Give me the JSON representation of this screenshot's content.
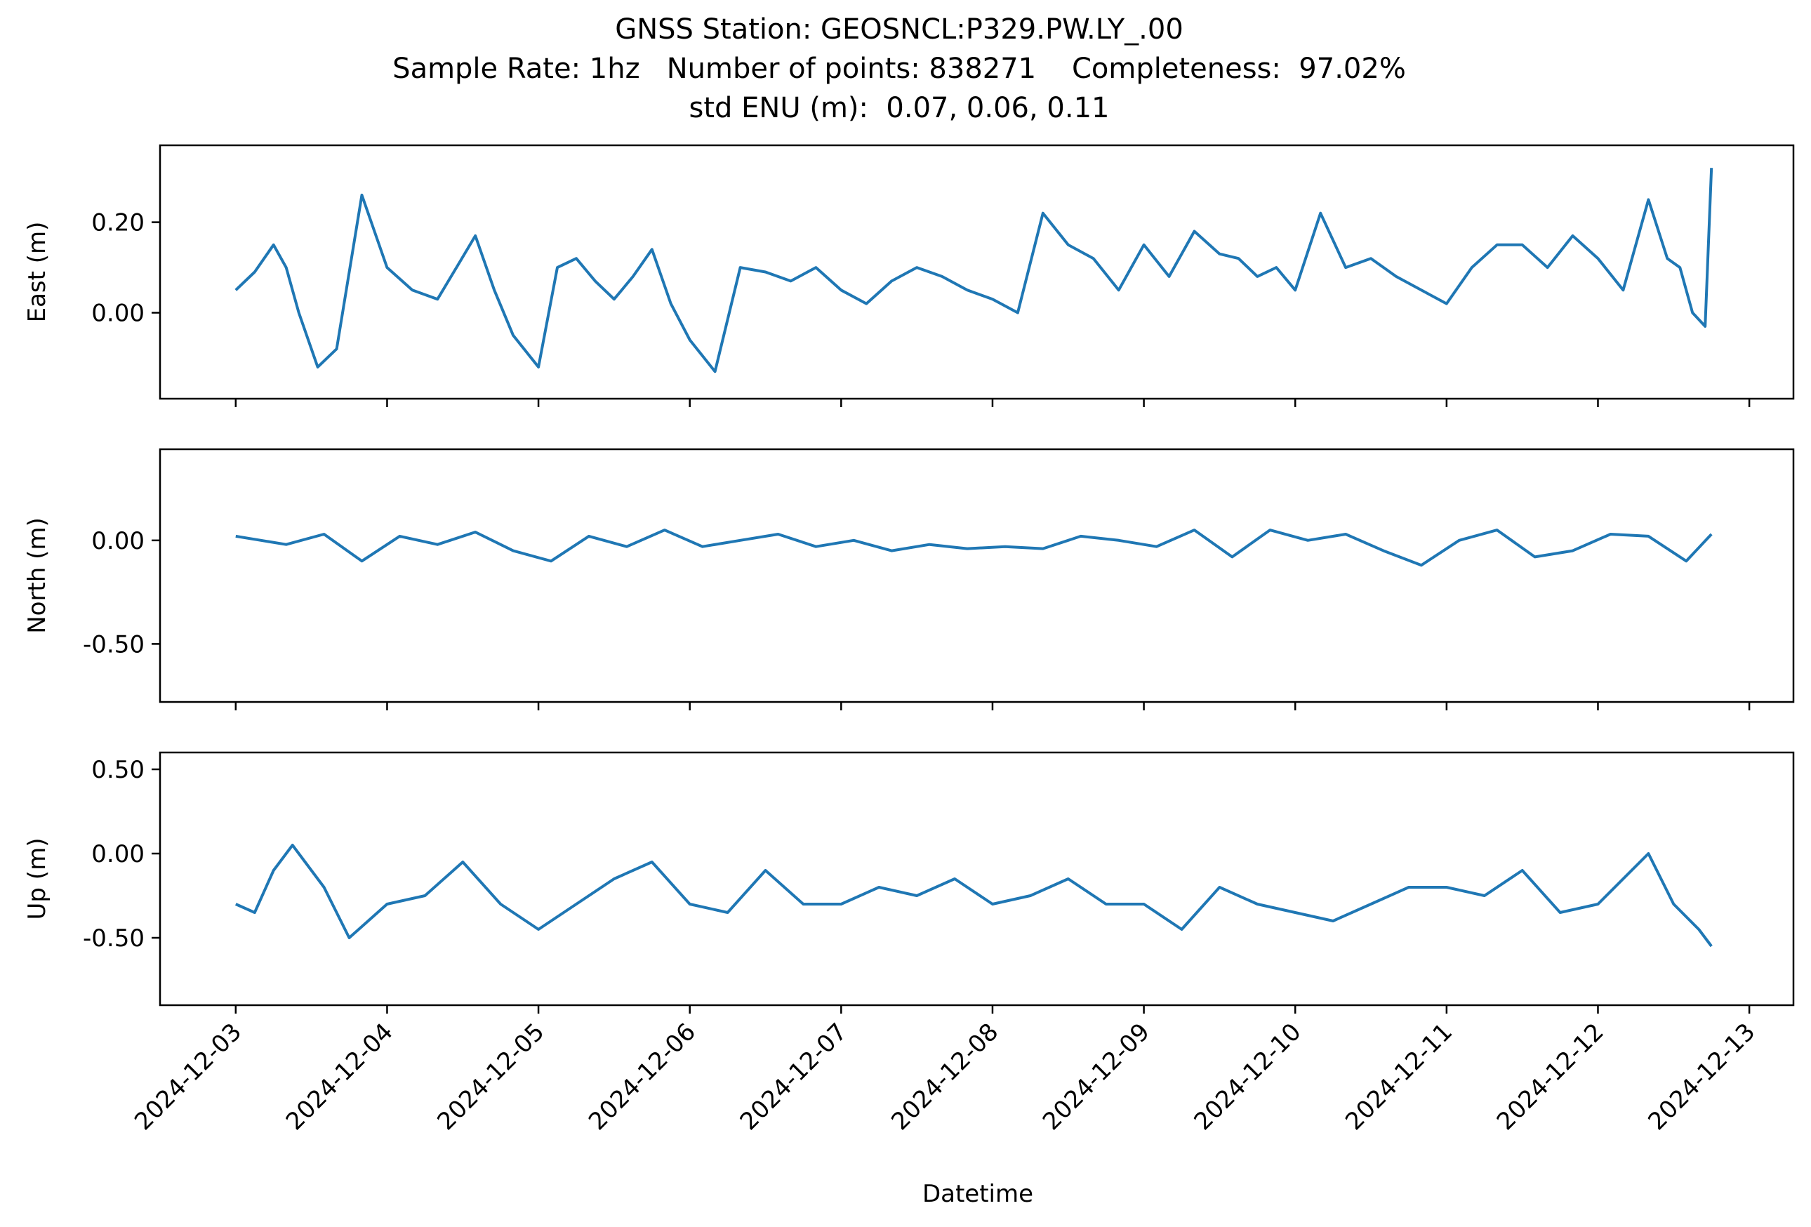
{
  "title": {
    "line1": "GNSS Station: GEOSNCL:P329.PW.LY_.00",
    "line2": "Sample Rate: 1hz   Number of points: 838271    Completeness:  97.02%",
    "line3": "std ENU (m):  0.07, 0.06, 0.11"
  },
  "colors": {
    "series": "#1f77b4",
    "axes": "#000000",
    "background": "#ffffff"
  },
  "chart_data": {
    "type": "line",
    "title": "GNSS Station: GEOSNCL:P329.PW.LY_.00\nSample Rate: 1hz   Number of points: 838271    Completeness:  97.02%\nstd ENU (m):  0.07, 0.06, 0.11",
    "xlabel": "Datetime",
    "x_ticks": [
      "2024-12-03",
      "2024-12-04",
      "2024-12-05",
      "2024-12-06",
      "2024-12-07",
      "2024-12-08",
      "2024-12-09",
      "2024-12-10",
      "2024-12-11",
      "2024-12-12",
      "2024-12-13"
    ],
    "xlim": [
      "2024-12-02 12:00",
      "2024-12-13 07:00"
    ],
    "shared_x": true,
    "grid": false,
    "panels": [
      {
        "name": "east",
        "ylabel": "East (m)",
        "ylim": [
          -0.19,
          0.37
        ],
        "yticks": [
          0.0,
          0.2
        ],
        "ytick_labels": [
          "0.00",
          "0.20"
        ],
        "series": [
          {
            "x": [
              "2024-12-03 00:00",
              "2024-12-03 03:00",
              "2024-12-03 06:00",
              "2024-12-03 08:00",
              "2024-12-03 10:00",
              "2024-12-03 13:00",
              "2024-12-03 16:00",
              "2024-12-03 20:00",
              "2024-12-04 00:00",
              "2024-12-04 04:00",
              "2024-12-04 08:00",
              "2024-12-04 11:00",
              "2024-12-04 14:00",
              "2024-12-04 17:00",
              "2024-12-04 20:00",
              "2024-12-05 00:00",
              "2024-12-05 03:00",
              "2024-12-05 06:00",
              "2024-12-05 09:00",
              "2024-12-05 12:00",
              "2024-12-05 15:00",
              "2024-12-05 18:00",
              "2024-12-05 21:00",
              "2024-12-06 00:00",
              "2024-12-06 04:00",
              "2024-12-06 08:00",
              "2024-12-06 12:00",
              "2024-12-06 16:00",
              "2024-12-06 20:00",
              "2024-12-07 00:00",
              "2024-12-07 04:00",
              "2024-12-07 08:00",
              "2024-12-07 12:00",
              "2024-12-07 16:00",
              "2024-12-07 20:00",
              "2024-12-08 00:00",
              "2024-12-08 04:00",
              "2024-12-08 08:00",
              "2024-12-08 12:00",
              "2024-12-08 16:00",
              "2024-12-08 20:00",
              "2024-12-09 00:00",
              "2024-12-09 04:00",
              "2024-12-09 08:00",
              "2024-12-09 12:00",
              "2024-12-09 15:00",
              "2024-12-09 18:00",
              "2024-12-09 21:00",
              "2024-12-10 00:00",
              "2024-12-10 04:00",
              "2024-12-10 08:00",
              "2024-12-10 12:00",
              "2024-12-10 16:00",
              "2024-12-10 20:00",
              "2024-12-11 00:00",
              "2024-12-11 04:00",
              "2024-12-11 08:00",
              "2024-12-11 12:00",
              "2024-12-11 16:00",
              "2024-12-11 20:00",
              "2024-12-12 00:00",
              "2024-12-12 04:00",
              "2024-12-12 08:00",
              "2024-12-12 11:00",
              "2024-12-12 13:00",
              "2024-12-12 15:00",
              "2024-12-12 17:00",
              "2024-12-12 18:00"
            ],
            "y": [
              0.05,
              0.09,
              0.15,
              0.1,
              0.0,
              -0.12,
              -0.08,
              0.26,
              0.1,
              0.05,
              0.03,
              0.1,
              0.17,
              0.05,
              -0.05,
              -0.12,
              0.1,
              0.12,
              0.07,
              0.03,
              0.08,
              0.14,
              0.02,
              -0.06,
              -0.13,
              0.1,
              0.09,
              0.07,
              0.1,
              0.05,
              0.02,
              0.07,
              0.1,
              0.08,
              0.05,
              0.03,
              0.0,
              0.22,
              0.15,
              0.12,
              0.05,
              0.15,
              0.08,
              0.18,
              0.13,
              0.12,
              0.08,
              0.1,
              0.05,
              0.22,
              0.1,
              0.12,
              0.08,
              0.05,
              0.02,
              0.1,
              0.15,
              0.15,
              0.1,
              0.17,
              0.12,
              0.05,
              0.25,
              0.12,
              0.1,
              0.0,
              -0.03,
              0.32
            ]
          }
        ]
      },
      {
        "name": "north",
        "ylabel": "North (m)",
        "ylim": [
          -0.78,
          0.44
        ],
        "yticks": [
          -0.5,
          0.0
        ],
        "ytick_labels": [
          "-0.50",
          "0.00"
        ],
        "series": [
          {
            "x": [
              "2024-12-03 00:00",
              "2024-12-03 04:00",
              "2024-12-03 08:00",
              "2024-12-03 14:00",
              "2024-12-03 20:00",
              "2024-12-04 02:00",
              "2024-12-04 08:00",
              "2024-12-04 14:00",
              "2024-12-04 20:00",
              "2024-12-05 02:00",
              "2024-12-05 08:00",
              "2024-12-05 14:00",
              "2024-12-05 20:00",
              "2024-12-06 02:00",
              "2024-12-06 08:00",
              "2024-12-06 14:00",
              "2024-12-06 20:00",
              "2024-12-07 02:00",
              "2024-12-07 08:00",
              "2024-12-07 14:00",
              "2024-12-07 20:00",
              "2024-12-08 02:00",
              "2024-12-08 08:00",
              "2024-12-08 14:00",
              "2024-12-08 20:00",
              "2024-12-09 02:00",
              "2024-12-09 08:00",
              "2024-12-09 14:00",
              "2024-12-09 20:00",
              "2024-12-10 02:00",
              "2024-12-10 08:00",
              "2024-12-10 14:00",
              "2024-12-10 20:00",
              "2024-12-11 02:00",
              "2024-12-11 08:00",
              "2024-12-11 14:00",
              "2024-12-11 20:00",
              "2024-12-12 02:00",
              "2024-12-12 08:00",
              "2024-12-12 14:00",
              "2024-12-12 18:00"
            ],
            "y": [
              0.02,
              0.0,
              -0.02,
              0.03,
              -0.1,
              0.02,
              -0.02,
              0.04,
              -0.05,
              -0.1,
              0.02,
              -0.03,
              0.05,
              -0.03,
              0.0,
              0.03,
              -0.03,
              0.0,
              -0.05,
              -0.02,
              -0.04,
              -0.03,
              -0.04,
              0.02,
              0.0,
              -0.03,
              0.05,
              -0.08,
              0.05,
              0.0,
              0.03,
              -0.05,
              -0.12,
              0.0,
              0.05,
              -0.08,
              -0.05,
              0.03,
              0.02,
              -0.1,
              0.03
            ]
          }
        ]
      },
      {
        "name": "up",
        "ylabel": "Up (m)",
        "ylim": [
          -0.9,
          0.6
        ],
        "yticks": [
          -0.5,
          0.0,
          0.5
        ],
        "ytick_labels": [
          "-0.50",
          "0.00",
          "0.50"
        ],
        "series": [
          {
            "x": [
              "2024-12-03 00:00",
              "2024-12-03 03:00",
              "2024-12-03 06:00",
              "2024-12-03 09:00",
              "2024-12-03 14:00",
              "2024-12-03 18:00",
              "2024-12-04 00:00",
              "2024-12-04 06:00",
              "2024-12-04 12:00",
              "2024-12-04 18:00",
              "2024-12-05 00:00",
              "2024-12-05 06:00",
              "2024-12-05 12:00",
              "2024-12-05 18:00",
              "2024-12-06 00:00",
              "2024-12-06 06:00",
              "2024-12-06 12:00",
              "2024-12-06 18:00",
              "2024-12-07 00:00",
              "2024-12-07 06:00",
              "2024-12-07 12:00",
              "2024-12-07 18:00",
              "2024-12-08 00:00",
              "2024-12-08 06:00",
              "2024-12-08 12:00",
              "2024-12-08 18:00",
              "2024-12-09 00:00",
              "2024-12-09 06:00",
              "2024-12-09 12:00",
              "2024-12-09 18:00",
              "2024-12-10 00:00",
              "2024-12-10 06:00",
              "2024-12-10 12:00",
              "2024-12-10 18:00",
              "2024-12-11 00:00",
              "2024-12-11 06:00",
              "2024-12-11 12:00",
              "2024-12-11 18:00",
              "2024-12-12 00:00",
              "2024-12-12 04:00",
              "2024-12-12 08:00",
              "2024-12-12 12:00",
              "2024-12-12 16:00",
              "2024-12-12 18:00"
            ],
            "y": [
              -0.3,
              -0.35,
              -0.1,
              0.05,
              -0.2,
              -0.5,
              -0.3,
              -0.25,
              -0.05,
              -0.3,
              -0.45,
              -0.3,
              -0.15,
              -0.05,
              -0.3,
              -0.35,
              -0.1,
              -0.3,
              -0.3,
              -0.2,
              -0.25,
              -0.15,
              -0.3,
              -0.25,
              -0.15,
              -0.3,
              -0.3,
              -0.45,
              -0.2,
              -0.3,
              -0.35,
              -0.4,
              -0.3,
              -0.2,
              -0.2,
              -0.25,
              -0.1,
              -0.35,
              -0.3,
              -0.15,
              0.0,
              -0.3,
              -0.45,
              -0.55
            ]
          }
        ]
      }
    ]
  }
}
